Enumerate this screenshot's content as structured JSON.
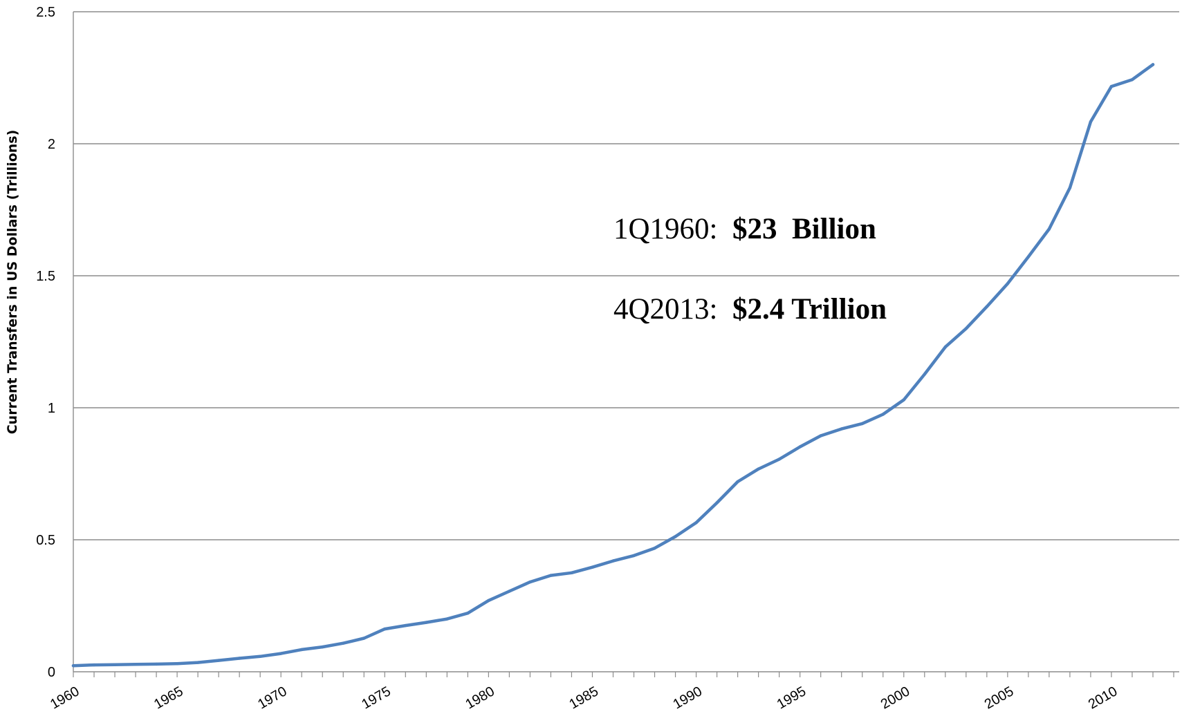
{
  "chart_data": {
    "type": "line",
    "title": "",
    "xlabel": "",
    "ylabel": "Current Transfers in US Dollars   (Trillions)",
    "xlim": [
      1960,
      2013
    ],
    "ylim": [
      0,
      2.5
    ],
    "x_ticks": [
      1960,
      1965,
      1970,
      1975,
      1980,
      1985,
      1990,
      1995,
      2000,
      2005,
      2010
    ],
    "x_tick_labels": [
      "1960",
      "1965",
      "1970",
      "1975",
      "1980",
      "1985",
      "1990",
      "1995",
      "2000",
      "2005",
      "2010"
    ],
    "y_ticks": [
      0,
      0.5,
      1,
      1.5,
      2,
      2.5
    ],
    "y_tick_labels": [
      "0",
      "0.5",
      "1",
      "1.5",
      "2",
      "2.5"
    ],
    "grid": true,
    "legend": "none",
    "series": [
      {
        "color": "#4F81BD",
        "points": [
          [
            1960,
            0.023
          ],
          [
            1961,
            0.026
          ],
          [
            1962,
            0.027
          ],
          [
            1963,
            0.028
          ],
          [
            1964,
            0.029
          ],
          [
            1965,
            0.031
          ],
          [
            1966,
            0.035
          ],
          [
            1967,
            0.043
          ],
          [
            1968,
            0.051
          ],
          [
            1969,
            0.058
          ],
          [
            1970,
            0.069
          ],
          [
            1971,
            0.084
          ],
          [
            1972,
            0.094
          ],
          [
            1973,
            0.108
          ],
          [
            1974,
            0.127
          ],
          [
            1975,
            0.162
          ],
          [
            1976,
            0.175
          ],
          [
            1977,
            0.187
          ],
          [
            1978,
            0.2
          ],
          [
            1979,
            0.222
          ],
          [
            1980,
            0.27
          ],
          [
            1981,
            0.305
          ],
          [
            1982,
            0.34
          ],
          [
            1983,
            0.365
          ],
          [
            1984,
            0.375
          ],
          [
            1985,
            0.396
          ],
          [
            1986,
            0.42
          ],
          [
            1987,
            0.44
          ],
          [
            1988,
            0.468
          ],
          [
            1989,
            0.512
          ],
          [
            1990,
            0.565
          ],
          [
            1991,
            0.64
          ],
          [
            1992,
            0.72
          ],
          [
            1993,
            0.768
          ],
          [
            1994,
            0.805
          ],
          [
            1995,
            0.852
          ],
          [
            1996,
            0.894
          ],
          [
            1997,
            0.92
          ],
          [
            1998,
            0.94
          ],
          [
            1999,
            0.975
          ],
          [
            2000,
            1.03
          ],
          [
            2001,
            1.127
          ],
          [
            2002,
            1.23
          ],
          [
            2003,
            1.3
          ],
          [
            2004,
            1.383
          ],
          [
            2005,
            1.47
          ],
          [
            2006,
            1.572
          ],
          [
            2007,
            1.677
          ],
          [
            2008,
            1.833
          ],
          [
            2009,
            2.083
          ],
          [
            2010,
            2.217
          ],
          [
            2011,
            2.243
          ],
          [
            2012,
            2.3
          ]
        ]
      }
    ],
    "annotations": [
      {
        "prefix": "1Q1960:  ",
        "value": "$23  Billion"
      },
      {
        "prefix": "4Q2013:  ",
        "value": "$2.4 Trillion"
      }
    ]
  }
}
